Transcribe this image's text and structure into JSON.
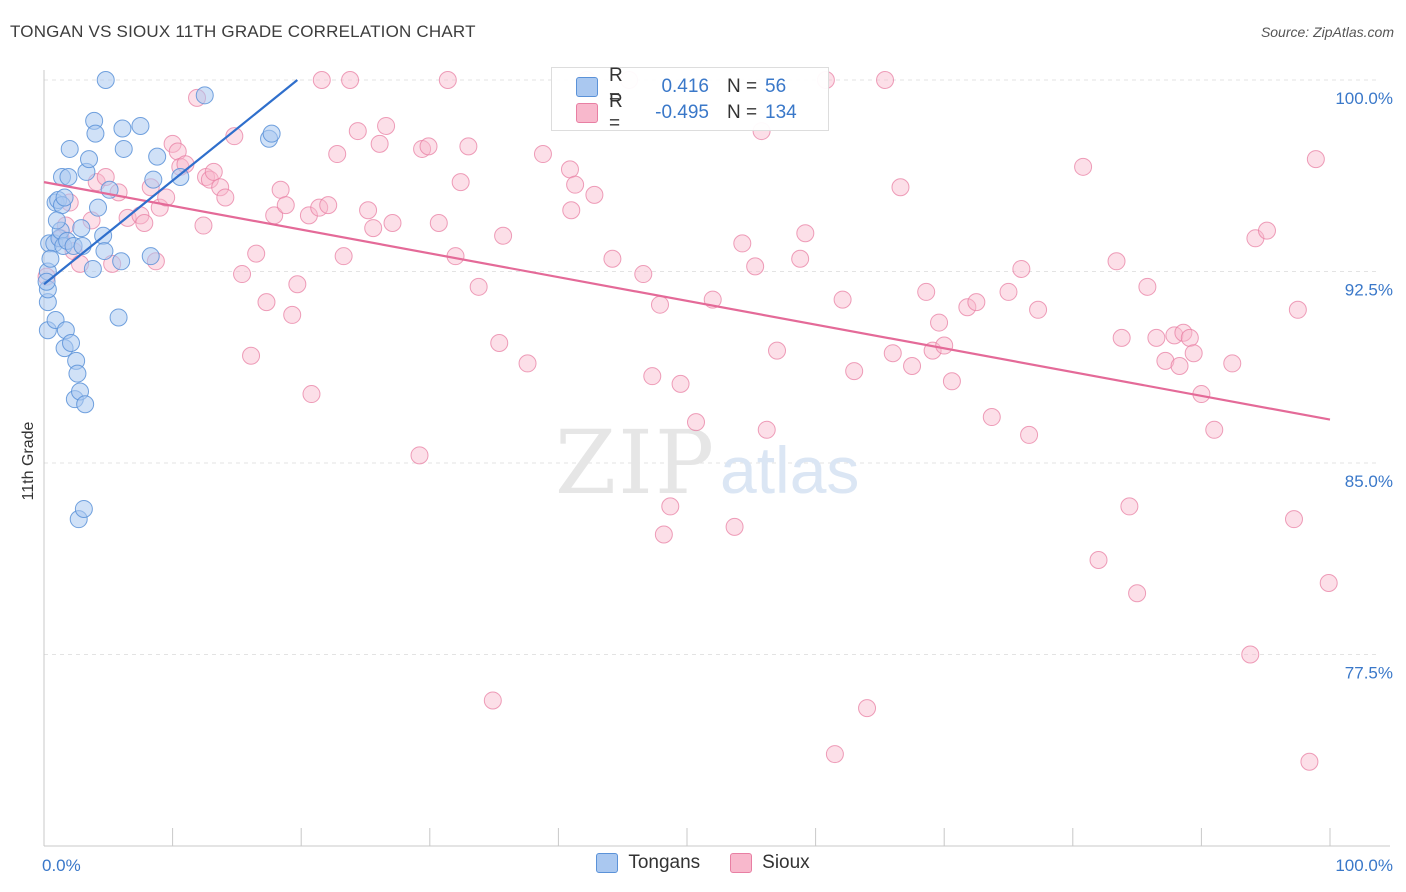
{
  "header": {
    "title": "TONGAN VS SIOUX 11TH GRADE CORRELATION CHART",
    "source": "Source: ZipAtlas.com"
  },
  "watermark": {
    "zip": "ZIP",
    "atlas": "atlas"
  },
  "legend_box": {
    "rows": [
      {
        "swatch_color": "#aac8f0",
        "r_label": "R =",
        "r_value": "0.416",
        "n_label": "N =",
        "n_value": "56"
      },
      {
        "swatch_color": "#f8b8cc",
        "r_label": "R =",
        "r_value": "-0.495",
        "n_label": "N =",
        "n_value": "134"
      }
    ]
  },
  "bottom_legend": [
    {
      "label": "Tongans",
      "color": "#aac8f0"
    },
    {
      "label": "Sioux",
      "color": "#f8b8cc"
    }
  ],
  "chart_data": {
    "type": "scatter",
    "title": "TONGAN VS SIOUX 11TH GRADE CORRELATION CHART",
    "ylabel": "11th Grade",
    "xlabel": "",
    "x_tick_labels": [
      "0.0%",
      "100.0%"
    ],
    "y_tick_labels": [
      "100.0%",
      "92.5%",
      "85.0%",
      "77.5%"
    ],
    "y_ticks": [
      100.0,
      92.5,
      85.0,
      77.5
    ],
    "xlim": [
      0,
      100
    ],
    "ylim": [
      72.0,
      100.5
    ],
    "grid": "horizontal dashed",
    "legend_position": "top-center",
    "colors": {
      "tongans_stroke": "#5b92d8",
      "tongans_fill": "#aac8f0",
      "sioux_stroke": "#e87fa3",
      "sioux_fill": "#f8b8cc",
      "tongan_line": "#2f6fcc",
      "sioux_line": "#e46a98",
      "tick_label": "#3a78c9"
    },
    "series": [
      {
        "name": "Tongans",
        "r": 0.416,
        "n": 56,
        "trend": {
          "x": [
            0.0,
            19.7
          ],
          "y": [
            92.0,
            100.0
          ]
        },
        "points": [
          [
            0.3,
            91.3
          ],
          [
            0.3,
            92.5
          ],
          [
            0.3,
            91.8
          ],
          [
            0.3,
            90.2
          ],
          [
            0.4,
            93.6
          ],
          [
            0.8,
            93.6
          ],
          [
            0.9,
            95.2
          ],
          [
            0.9,
            90.6
          ],
          [
            1.1,
            95.3
          ],
          [
            1.2,
            93.8
          ],
          [
            1.3,
            94.1
          ],
          [
            1.4,
            95.1
          ],
          [
            1.4,
            96.2
          ],
          [
            1.5,
            93.5
          ],
          [
            1.6,
            95.4
          ],
          [
            1.6,
            89.5
          ],
          [
            1.7,
            90.2
          ],
          [
            1.8,
            93.7
          ],
          [
            1.9,
            96.2
          ],
          [
            2.0,
            97.3
          ],
          [
            2.1,
            89.7
          ],
          [
            2.3,
            93.5
          ],
          [
            2.4,
            87.5
          ],
          [
            2.5,
            89.0
          ],
          [
            2.6,
            88.5
          ],
          [
            2.7,
            82.8
          ],
          [
            2.8,
            87.8
          ],
          [
            3.0,
            93.5
          ],
          [
            3.1,
            83.2
          ],
          [
            3.2,
            87.3
          ],
          [
            3.3,
            96.4
          ],
          [
            3.5,
            96.9
          ],
          [
            3.8,
            92.6
          ],
          [
            3.9,
            98.4
          ],
          [
            4.0,
            97.9
          ],
          [
            4.2,
            95.0
          ],
          [
            4.6,
            93.9
          ],
          [
            4.7,
            93.3
          ],
          [
            4.8,
            100.0
          ],
          [
            5.1,
            95.7
          ],
          [
            5.8,
            90.7
          ],
          [
            6.0,
            92.9
          ],
          [
            6.1,
            98.1
          ],
          [
            6.2,
            97.3
          ],
          [
            7.5,
            98.2
          ],
          [
            8.3,
            93.1
          ],
          [
            8.5,
            96.1
          ],
          [
            8.8,
            97.0
          ],
          [
            10.6,
            96.2
          ],
          [
            12.5,
            99.4
          ],
          [
            17.5,
            97.7
          ],
          [
            17.7,
            97.9
          ],
          [
            0.2,
            92.1
          ],
          [
            0.5,
            93.0
          ],
          [
            1.0,
            94.5
          ],
          [
            2.9,
            94.2
          ]
        ]
      },
      {
        "name": "Sioux",
        "r": -0.495,
        "n": 134,
        "trend": {
          "x": [
            0.0,
            100.0
          ],
          "y": [
            96.0,
            86.7
          ]
        },
        "points": [
          [
            0.2,
            92.3
          ],
          [
            1.3,
            93.8
          ],
          [
            1.7,
            94.3
          ],
          [
            2.0,
            95.2
          ],
          [
            2.3,
            93.3
          ],
          [
            2.8,
            92.8
          ],
          [
            3.7,
            94.5
          ],
          [
            4.1,
            96.0
          ],
          [
            4.8,
            96.2
          ],
          [
            5.3,
            92.8
          ],
          [
            5.8,
            95.6
          ],
          [
            6.5,
            94.6
          ],
          [
            7.5,
            94.7
          ],
          [
            7.8,
            94.4
          ],
          [
            8.3,
            95.8
          ],
          [
            8.7,
            92.9
          ],
          [
            9.0,
            95.0
          ],
          [
            9.5,
            95.4
          ],
          [
            10.0,
            97.5
          ],
          [
            10.4,
            97.2
          ],
          [
            10.6,
            96.6
          ],
          [
            11.0,
            96.7
          ],
          [
            11.9,
            99.3
          ],
          [
            12.4,
            94.3
          ],
          [
            12.6,
            96.2
          ],
          [
            12.9,
            96.1
          ],
          [
            13.2,
            96.4
          ],
          [
            13.7,
            95.8
          ],
          [
            14.1,
            95.4
          ],
          [
            14.8,
            97.8
          ],
          [
            15.4,
            92.4
          ],
          [
            16.1,
            89.2
          ],
          [
            16.5,
            93.2
          ],
          [
            17.3,
            91.3
          ],
          [
            17.9,
            94.7
          ],
          [
            18.4,
            95.7
          ],
          [
            18.8,
            95.1
          ],
          [
            19.3,
            90.8
          ],
          [
            19.7,
            92.0
          ],
          [
            20.6,
            94.7
          ],
          [
            20.8,
            87.7
          ],
          [
            21.4,
            95.0
          ],
          [
            21.6,
            100.0
          ],
          [
            22.1,
            95.1
          ],
          [
            22.8,
            97.1
          ],
          [
            23.3,
            93.1
          ],
          [
            23.8,
            100.0
          ],
          [
            24.4,
            98.0
          ],
          [
            25.2,
            94.9
          ],
          [
            25.6,
            94.2
          ],
          [
            26.1,
            97.5
          ],
          [
            26.6,
            98.2
          ],
          [
            27.1,
            94.4
          ],
          [
            29.2,
            85.3
          ],
          [
            29.4,
            97.3
          ],
          [
            29.9,
            97.4
          ],
          [
            30.7,
            94.4
          ],
          [
            31.4,
            100.0
          ],
          [
            32.0,
            93.1
          ],
          [
            32.4,
            96.0
          ],
          [
            33.0,
            97.4
          ],
          [
            33.8,
            91.9
          ],
          [
            34.9,
            75.7
          ],
          [
            35.4,
            89.7
          ],
          [
            35.7,
            93.9
          ],
          [
            37.6,
            88.9
          ],
          [
            38.8,
            97.1
          ],
          [
            40.9,
            96.5
          ],
          [
            41.0,
            94.9
          ],
          [
            41.3,
            95.9
          ],
          [
            42.2,
            100.0
          ],
          [
            42.8,
            95.5
          ],
          [
            44.2,
            93.0
          ],
          [
            45.5,
            100.0
          ],
          [
            46.6,
            92.4
          ],
          [
            47.3,
            88.4
          ],
          [
            47.9,
            91.2
          ],
          [
            48.2,
            82.2
          ],
          [
            48.7,
            83.3
          ],
          [
            49.5,
            88.1
          ],
          [
            50.7,
            86.6
          ],
          [
            52.0,
            91.4
          ],
          [
            53.7,
            82.5
          ],
          [
            54.3,
            93.6
          ],
          [
            55.3,
            92.7
          ],
          [
            55.8,
            98.0
          ],
          [
            56.2,
            86.3
          ],
          [
            57.0,
            89.4
          ],
          [
            58.8,
            93.0
          ],
          [
            59.2,
            94.0
          ],
          [
            60.8,
            100.0
          ],
          [
            61.5,
            73.6
          ],
          [
            62.1,
            91.4
          ],
          [
            63.0,
            88.6
          ],
          [
            64.0,
            75.4
          ],
          [
            65.4,
            100.0
          ],
          [
            66.0,
            89.3
          ],
          [
            66.6,
            95.8
          ],
          [
            67.5,
            88.8
          ],
          [
            68.6,
            91.7
          ],
          [
            69.1,
            89.4
          ],
          [
            69.6,
            90.5
          ],
          [
            70.0,
            89.6
          ],
          [
            70.6,
            88.2
          ],
          [
            71.8,
            91.1
          ],
          [
            72.5,
            91.3
          ],
          [
            73.7,
            86.8
          ],
          [
            75.0,
            91.7
          ],
          [
            76.0,
            92.6
          ],
          [
            76.6,
            86.1
          ],
          [
            77.3,
            91.0
          ],
          [
            80.8,
            96.6
          ],
          [
            82.0,
            81.2
          ],
          [
            83.4,
            92.9
          ],
          [
            83.8,
            89.9
          ],
          [
            84.4,
            83.3
          ],
          [
            85.0,
            79.9
          ],
          [
            85.8,
            91.9
          ],
          [
            86.5,
            89.9
          ],
          [
            87.2,
            89.0
          ],
          [
            87.9,
            90.0
          ],
          [
            88.3,
            88.8
          ],
          [
            88.6,
            90.1
          ],
          [
            89.1,
            89.9
          ],
          [
            89.4,
            89.3
          ],
          [
            90.0,
            87.7
          ],
          [
            91.0,
            86.3
          ],
          [
            92.4,
            88.9
          ],
          [
            94.2,
            93.8
          ],
          [
            95.1,
            94.1
          ],
          [
            97.2,
            82.8
          ],
          [
            97.5,
            91.0
          ],
          [
            98.4,
            73.3
          ],
          [
            98.9,
            96.9
          ],
          [
            99.9,
            80.3
          ],
          [
            93.8,
            77.5
          ]
        ]
      }
    ]
  }
}
